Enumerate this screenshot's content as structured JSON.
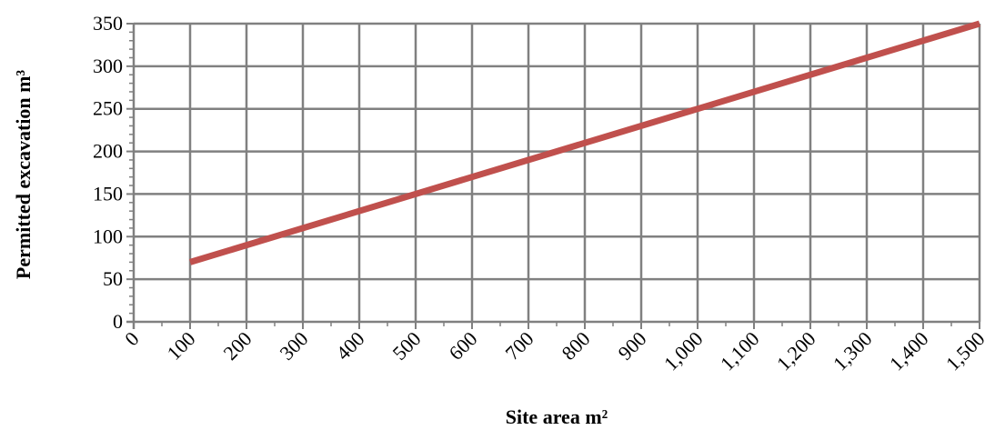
{
  "chart_data": {
    "type": "line",
    "title": "",
    "xlabel": "Site area m²",
    "ylabel": "Permitted excavation m³",
    "xlim": [
      0,
      1500
    ],
    "ylim": [
      0,
      350
    ],
    "x_ticks": [
      0,
      100,
      200,
      300,
      400,
      500,
      600,
      700,
      800,
      900,
      1000,
      1100,
      1200,
      1300,
      1400,
      1500
    ],
    "x_tick_labels": [
      "0",
      "100",
      "200",
      "300",
      "400",
      "500",
      "600",
      "700",
      "800",
      "900",
      "1,000",
      "1,100",
      "1,200",
      "1,300",
      "1,400",
      "1,500"
    ],
    "y_ticks": [
      0,
      50,
      100,
      150,
      200,
      250,
      300,
      350
    ],
    "y_tick_labels": [
      "0",
      "50",
      "100",
      "150",
      "200",
      "250",
      "300",
      "350"
    ],
    "grid": true,
    "legend": "none",
    "series": [
      {
        "x": [
          100,
          1500
        ],
        "y": [
          70,
          350
        ],
        "color": "#C0504D"
      }
    ],
    "colors": {
      "grid": "#808080",
      "line": "#C0504D",
      "text": "#000000"
    }
  }
}
